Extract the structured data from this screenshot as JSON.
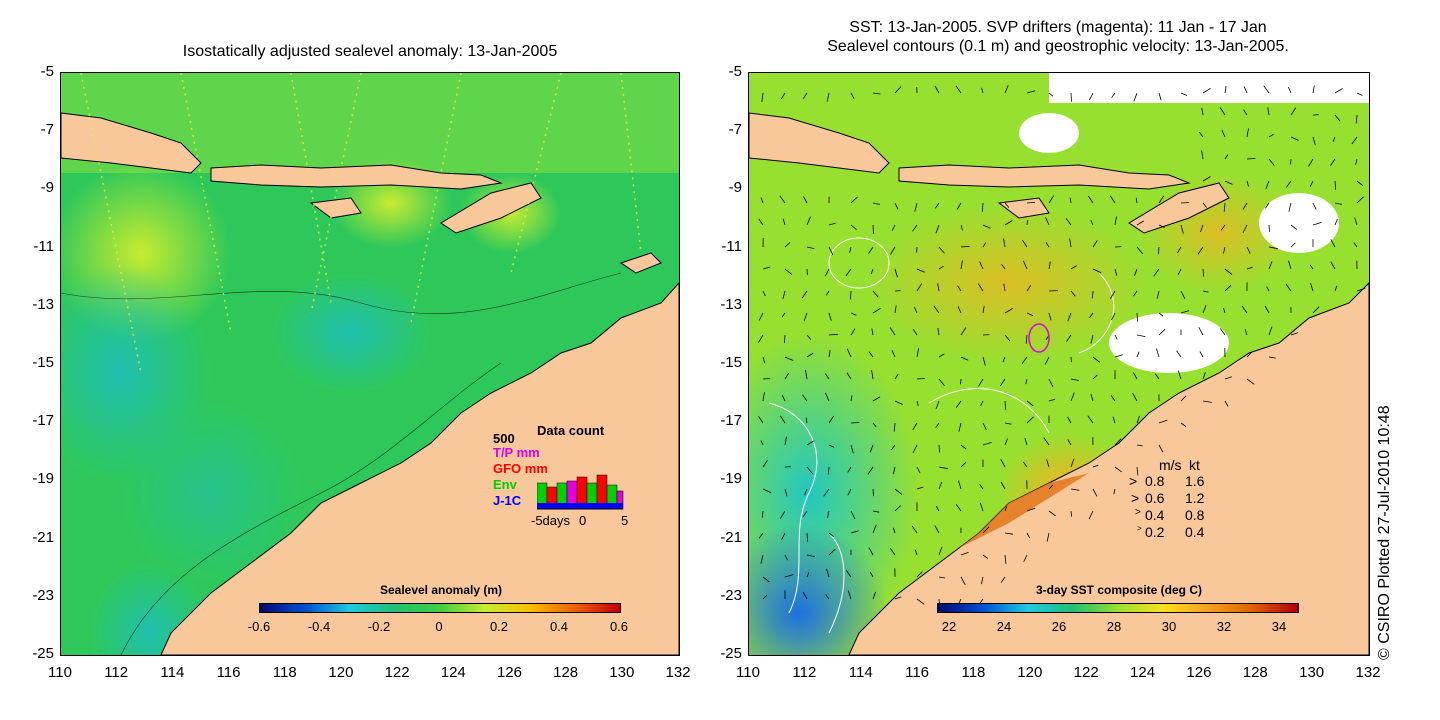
{
  "left_panel": {
    "title": "Isostatically adjusted sealevel anomaly: 13-Jan-2005",
    "y_ticks": [
      "-5",
      "-7",
      "-9",
      "-11",
      "-13",
      "-15",
      "-17",
      "-19",
      "-21",
      "-23",
      "-25"
    ],
    "x_ticks": [
      "110",
      "112",
      "114",
      "116",
      "118",
      "120",
      "122",
      "124",
      "126",
      "128",
      "130",
      "132"
    ],
    "colorbar": {
      "title": "Sealevel anomaly (m)",
      "labels": [
        "-0.6",
        "-0.4",
        "-0.2",
        "0",
        "0.2",
        "0.4",
        "0.6"
      ]
    },
    "inset": {
      "title": "Data count",
      "scale": "500",
      "series": [
        {
          "name": "T/P mm",
          "color": "#e000e0"
        },
        {
          "name": "GFO mm",
          "color": "#ff0000"
        },
        {
          "name": "Env",
          "color": "#00d000"
        },
        {
          "name": "J-1C",
          "color": "#0000ff"
        }
      ],
      "axis_labels": [
        "-5days",
        "0",
        "5"
      ]
    }
  },
  "right_panel": {
    "title_line1": "SST: 13-Jan-2005. SVP drifters (magenta): 11 Jan - 17 Jan",
    "title_line2": "Sealevel contours (0.1 m) and geostrophic velocity: 13-Jan-2005.",
    "y_ticks": [
      "-5",
      "-7",
      "-9",
      "-11",
      "-13",
      "-15",
      "-17",
      "-19",
      "-21",
      "-23",
      "-25"
    ],
    "x_ticks": [
      "110",
      "112",
      "114",
      "116",
      "118",
      "120",
      "122",
      "124",
      "126",
      "128",
      "130",
      "132"
    ],
    "colorbar": {
      "title": "3-day SST composite (deg C)",
      "labels": [
        "22",
        "24",
        "26",
        "28",
        "30",
        "32",
        "34"
      ]
    },
    "velocity_legend": {
      "header_ms": "m/s",
      "header_kt": "kt",
      "rows": [
        {
          "ms": "0.8",
          "kt": "1.6"
        },
        {
          "ms": "0.6",
          "kt": "1.2"
        },
        {
          "ms": "0.4",
          "kt": "0.8"
        },
        {
          "ms": "0.2",
          "kt": "0.4"
        }
      ]
    }
  },
  "credit": "© CSIRO Plotted 27-Jul-2010 10:48",
  "colors": {
    "land": "#f8c89a",
    "sea_green": "#1cbd4a",
    "sea_yellow": "#b8e63a",
    "sea_cyan": "#20c8b8",
    "sea_blue": "#1e78e0",
    "sst_orange": "#f0a020"
  }
}
